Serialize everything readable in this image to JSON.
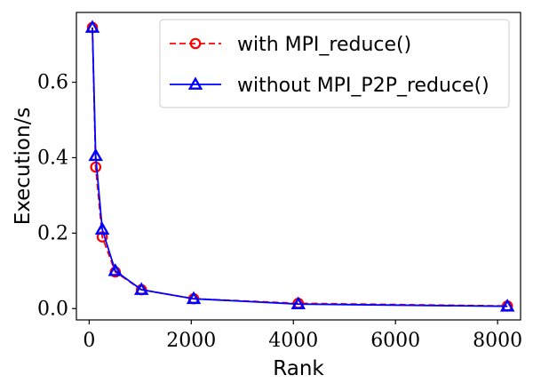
{
  "chart_data": {
    "type": "line",
    "xlabel": "Rank",
    "ylabel": "Execution/s",
    "xlim": [
      -250,
      8450
    ],
    "ylim": [
      -0.03,
      0.785
    ],
    "xticks": [
      0,
      2000,
      4000,
      6000,
      8000
    ],
    "yticks": [
      0.0,
      0.2,
      0.4,
      0.6
    ],
    "xtick_labels": [
      "0",
      "2000",
      "4000",
      "6000",
      "8000"
    ],
    "ytick_labels": [
      "0.0",
      "0.2",
      "0.4",
      "0.6"
    ],
    "grid": false,
    "legend_position": "top-right",
    "series": [
      {
        "name": "with MPI_reduce()",
        "color": "#ff0000",
        "line_style": "dashed",
        "marker": "circle",
        "x": [
          64,
          128,
          256,
          512,
          1024,
          2048,
          4096,
          8192
        ],
        "y": [
          0.745,
          0.375,
          0.19,
          0.097,
          0.05,
          0.026,
          0.014,
          0.007
        ]
      },
      {
        "name": "without MPI_P2P_reduce()",
        "color": "#0000ff",
        "line_style": "solid",
        "marker": "triangle",
        "x": [
          64,
          128,
          256,
          512,
          1024,
          2048,
          4096,
          8192
        ],
        "y": [
          0.745,
          0.405,
          0.21,
          0.1,
          0.05,
          0.026,
          0.012,
          0.006
        ]
      }
    ]
  }
}
